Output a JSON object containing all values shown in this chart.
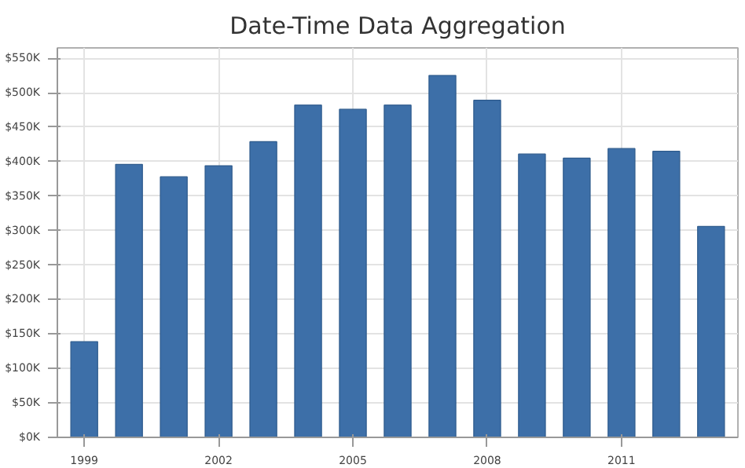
{
  "chart_data": {
    "type": "bar",
    "title": "Date-Time Data Aggregation",
    "x": [
      1999,
      2000,
      2001,
      2002,
      2003,
      2004,
      2005,
      2006,
      2007,
      2008,
      2009,
      2010,
      2011,
      2012,
      2013
    ],
    "values": [
      139000,
      396000,
      378000,
      394000,
      429000,
      482000,
      476000,
      482000,
      525000,
      489000,
      411000,
      405000,
      419000,
      415000,
      306000
    ],
    "color": "#3d6fa8",
    "xlim": [
      1998.4,
      2013.6
    ],
    "xticks": [
      1999,
      2002,
      2005,
      2008,
      2011
    ],
    "ylim": [
      0,
      565000
    ],
    "yticks": [
      {
        "value": 0,
        "label": "$0K"
      },
      {
        "value": 50000,
        "label": "$50K"
      },
      {
        "value": 100000,
        "label": "$100K"
      },
      {
        "value": 150000,
        "label": "$150K"
      },
      {
        "value": 200000,
        "label": "$200K"
      },
      {
        "value": 250000,
        "label": "$250K"
      },
      {
        "value": 300000,
        "label": "$300K"
      },
      {
        "value": 350000,
        "label": "$350K"
      },
      {
        "value": 400000,
        "label": "$400K"
      },
      {
        "value": 450000,
        "label": "$450K"
      },
      {
        "value": 500000,
        "label": "$500K"
      },
      {
        "value": 550000,
        "label": "$550K"
      }
    ],
    "grid": true
  }
}
